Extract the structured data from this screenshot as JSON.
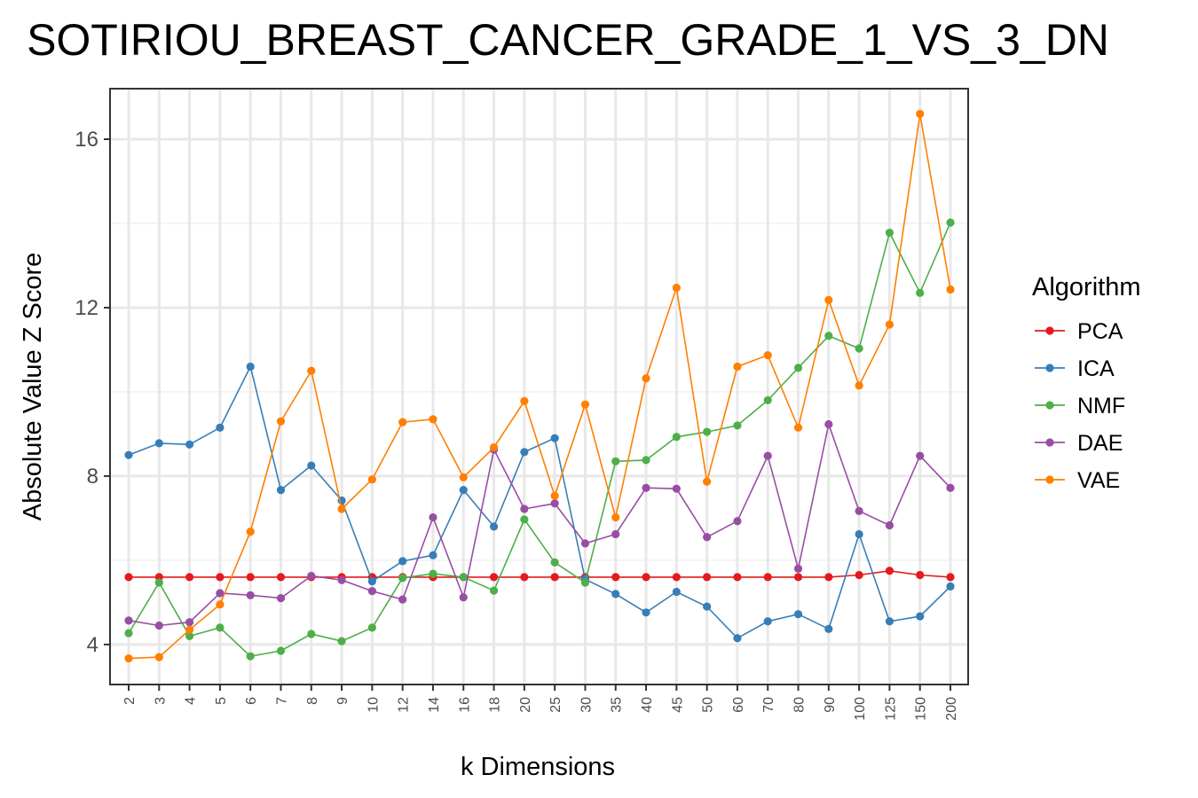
{
  "chart_data": {
    "type": "line",
    "title": "SOTIRIOU_BREAST_CANCER_GRADE_1_VS_3_DN",
    "xlabel": "k Dimensions",
    "ylabel": "Absolute Value Z Score",
    "categories": [
      "2",
      "3",
      "4",
      "5",
      "6",
      "7",
      "8",
      "9",
      "10",
      "12",
      "14",
      "16",
      "18",
      "20",
      "25",
      "30",
      "35",
      "40",
      "45",
      "50",
      "60",
      "70",
      "80",
      "90",
      "100",
      "125",
      "150",
      "200"
    ],
    "ylim": [
      3.05,
      17.2
    ],
    "yticks": [
      4,
      8,
      12,
      16
    ],
    "grid": true,
    "legend": {
      "title": "Algorithm",
      "position": "right"
    },
    "series": [
      {
        "name": "PCA",
        "color": "#e41a1c",
        "values": [
          5.6,
          5.6,
          5.6,
          5.6,
          5.6,
          5.6,
          5.6,
          5.6,
          5.6,
          5.6,
          5.6,
          5.6,
          5.6,
          5.6,
          5.6,
          5.6,
          5.6,
          5.6,
          5.6,
          5.6,
          5.6,
          5.6,
          5.6,
          5.6,
          5.65,
          5.75,
          5.65,
          5.6
        ]
      },
      {
        "name": "ICA",
        "color": "#377eb8",
        "values": [
          8.5,
          8.78,
          8.75,
          9.15,
          10.6,
          7.67,
          8.25,
          7.42,
          5.5,
          5.98,
          6.12,
          7.67,
          6.8,
          8.57,
          8.9,
          5.55,
          5.2,
          4.76,
          5.25,
          4.9,
          4.15,
          4.55,
          4.72,
          4.37,
          6.62,
          4.55,
          4.67,
          5.38
        ]
      },
      {
        "name": "NMF",
        "color": "#4daf4a",
        "values": [
          4.27,
          5.47,
          4.2,
          4.4,
          3.72,
          3.85,
          4.25,
          4.08,
          4.4,
          5.58,
          5.68,
          5.6,
          5.28,
          6.97,
          5.95,
          5.47,
          8.35,
          8.38,
          8.93,
          9.05,
          9.2,
          9.8,
          10.57,
          11.33,
          11.03,
          13.78,
          12.35,
          14.02
        ]
      },
      {
        "name": "DAE",
        "color": "#984ea3",
        "values": [
          4.57,
          4.45,
          4.53,
          5.22,
          5.17,
          5.1,
          5.63,
          5.53,
          5.27,
          5.07,
          7.02,
          5.12,
          8.63,
          7.22,
          7.35,
          6.4,
          6.62,
          7.72,
          7.7,
          6.55,
          6.93,
          8.48,
          5.8,
          9.23,
          7.17,
          6.83,
          8.48,
          7.72
        ]
      },
      {
        "name": "VAE",
        "color": "#ff7f00",
        "values": [
          3.67,
          3.7,
          4.35,
          4.95,
          6.68,
          9.3,
          10.5,
          7.22,
          7.92,
          9.28,
          9.35,
          7.97,
          8.68,
          9.78,
          7.53,
          9.7,
          7.02,
          10.32,
          12.47,
          7.87,
          10.6,
          10.87,
          9.15,
          12.18,
          10.15,
          11.6,
          16.6,
          12.43
        ]
      }
    ]
  }
}
